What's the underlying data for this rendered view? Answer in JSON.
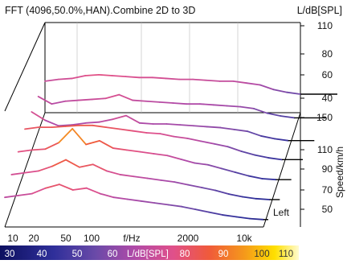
{
  "chart_data": {
    "type": "line",
    "title": "FFT (4096,50.0%,HAN).Combine 2D to 3D",
    "z_axis": {
      "unit_label": "L/dB[SPL]",
      "ticks": [
        "110",
        "80",
        "60",
        "40"
      ]
    },
    "speed_axis": {
      "label": "Speed/km/h",
      "ticks": [
        "150",
        "110",
        "90",
        "70",
        "50"
      ]
    },
    "x_axis": {
      "label": "f/Hz",
      "scale": "log",
      "ticks": [
        "10",
        "20",
        "50",
        "100",
        "2000",
        "10k"
      ],
      "tick_values": [
        10,
        20,
        50,
        100,
        2000,
        10000
      ],
      "xlim": [
        8,
        20000
      ]
    },
    "annotation": "Left",
    "colorbar": {
      "ticks": [
        "30",
        "40",
        "50",
        "60",
        "80",
        "90",
        "100",
        "110"
      ],
      "label": "L/dB[SPL]",
      "range": [
        30,
        110
      ]
    },
    "series": [
      {
        "speed": 150,
        "values": [
          64,
          66,
          67,
          70,
          71,
          70,
          69,
          68,
          68,
          67,
          66,
          66,
          65,
          64,
          64,
          62,
          60,
          55,
          52,
          50
        ]
      },
      {
        "speed": 130,
        "values": [
          68,
          60,
          63,
          64,
          65,
          66,
          70,
          64,
          63,
          62,
          61,
          60,
          60,
          59,
          58,
          57,
          55,
          50,
          47,
          45
        ]
      },
      {
        "speed": 110,
        "values": [
          72,
          63,
          57,
          58,
          60,
          61,
          64,
          68,
          60,
          59,
          59,
          58,
          57,
          56,
          55,
          53,
          51,
          46,
          43,
          41
        ]
      },
      {
        "speed": 90,
        "values": [
          74,
          76,
          76,
          77,
          78,
          78,
          76,
          74,
          72,
          70,
          69,
          66,
          64,
          61,
          58,
          55,
          50,
          46,
          43,
          41
        ]
      },
      {
        "speed": 70,
        "values": [
          70,
          72,
          73,
          80,
          95,
          78,
          82,
          74,
          72,
          70,
          68,
          66,
          62,
          58,
          56,
          52,
          48,
          44,
          41,
          40
        ]
      },
      {
        "speed": 60,
        "values": [
          66,
          68,
          70,
          75,
          82,
          74,
          77,
          70,
          66,
          64,
          62,
          60,
          58,
          55,
          52,
          49,
          45,
          42,
          40,
          39
        ]
      },
      {
        "speed": 50,
        "values": [
          62,
          64,
          66,
          72,
          76,
          70,
          72,
          66,
          62,
          60,
          58,
          56,
          54,
          52,
          49,
          46,
          43,
          41,
          39,
          38
        ]
      }
    ]
  }
}
